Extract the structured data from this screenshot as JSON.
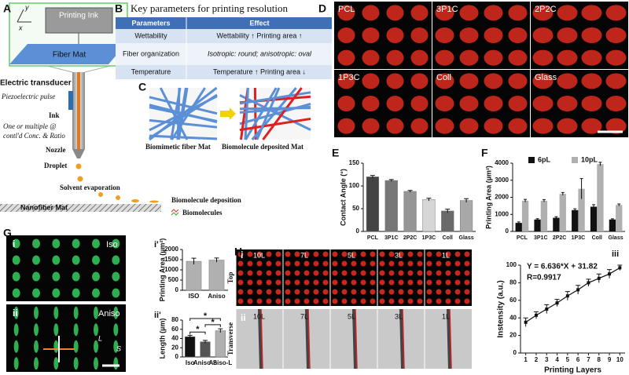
{
  "panel_labels": [
    "A",
    "B",
    "C",
    "D",
    "E",
    "F",
    "G",
    "H",
    "i'",
    "ii'",
    "iii"
  ],
  "panel_a": {
    "axis_y": "y",
    "axis_x": "x",
    "ink": "Printing Ink",
    "mat": "Fiber Mat",
    "transducer": "Electric transducer",
    "pulse": "Piezoelectric pulse",
    "ink_label": "Ink",
    "multi_1": "One or multiple @",
    "multi_2": "contl'd Conc. & Ratio",
    "nozzle": "Nozzle",
    "droplet": "Droplet",
    "evaporation": "Solvent evaporation",
    "deposition": "Biomolecule deposition",
    "biomolecules": "Biomolecules",
    "nanofiber": "Nanofiber Mat"
  },
  "panel_b": {
    "title": "Key parameters for printing resolution",
    "headers": [
      "Parameters",
      "Effect"
    ],
    "rows": [
      [
        "Wettability",
        "Wettability ↑  Printing area ↑"
      ],
      [
        "Fiber organization",
        "Isotropic: round; anisotropic: oval"
      ],
      [
        "Temperature",
        "Temperature ↑  Printing area ↓"
      ]
    ]
  },
  "panel_c": {
    "left": "Biomimetic fiber Mat",
    "right": "Biomolecule deposited Mat"
  },
  "panel_d": {
    "labels": [
      "PCL",
      "3P1C",
      "2P2C",
      "1P3C",
      "Coll",
      "Glass"
    ]
  },
  "panel_g": {
    "i": "i",
    "iso": "Iso",
    "ii": "ii",
    "aniso": "Aniso",
    "l": "L",
    "s": "S"
  },
  "panel_h": {
    "i": "i",
    "ii": "ii",
    "top": "Top",
    "transverse": "Transverse",
    "layers": [
      "10L",
      "7L",
      "5L",
      "3L",
      "1L"
    ]
  },
  "chart_data": [
    {
      "type": "bar",
      "y_label": "Contact Angle (°)",
      "categories": [
        "PCL",
        "3P1C",
        "2P2C",
        "1P3C",
        "Coll",
        "Glass"
      ],
      "values": [
        120,
        112,
        88,
        70,
        45,
        68
      ],
      "errors": [
        3,
        2,
        2,
        3,
        4,
        4
      ],
      "colors": [
        "#444444",
        "#777777",
        "#959595",
        "#d6d6d6",
        "#6a6a6a",
        "#a8a8a8"
      ],
      "ylim": [
        0,
        150
      ],
      "yticks": [
        0,
        50,
        100,
        150
      ]
    },
    {
      "type": "bar",
      "y_label": "Printing Area (µm²)",
      "categories": [
        "PCL",
        "3P1C",
        "2P2C",
        "1P3C",
        "Coll",
        "Glass"
      ],
      "series": [
        {
          "name": "6pL",
          "color": "#111111",
          "values": [
            500,
            700,
            800,
            1250,
            1450,
            700
          ],
          "errors": [
            60,
            50,
            60,
            80,
            120,
            40
          ]
        },
        {
          "name": "10pL",
          "color": "#b0b0b0",
          "values": [
            1800,
            1800,
            2200,
            2500,
            3950,
            1550
          ],
          "errors": [
            80,
            70,
            80,
            600,
            100,
            60
          ]
        }
      ],
      "ylim": [
        0,
        4000
      ],
      "yticks": [
        0,
        1000,
        2000,
        3000,
        4000
      ],
      "legend": "top"
    },
    {
      "type": "bar",
      "y_label": "Printing Area (µm²)",
      "categories": [
        "ISO",
        "Aniso"
      ],
      "values": [
        1420,
        1480
      ],
      "errors": [
        150,
        100
      ],
      "colors": [
        "#b0b0b0",
        "#b0b0b0"
      ],
      "ylim": [
        0,
        2000
      ],
      "yticks": [
        0,
        500,
        1000,
        1500,
        2000
      ]
    },
    {
      "type": "bar",
      "y_label": "Length (µm)",
      "categories": [
        "Iso",
        "Aniso-S",
        "Aniso-L"
      ],
      "values": [
        44,
        33,
        57
      ],
      "errors": [
        3,
        3,
        4
      ],
      "colors": [
        "#111111",
        "#555555",
        "#b0b0b0"
      ],
      "ylim": [
        0,
        80
      ],
      "yticks": [
        0,
        20,
        40,
        60,
        80
      ],
      "annotations": [
        "*",
        "*",
        "*"
      ]
    },
    {
      "type": "line",
      "y_label": "Instensity (a.u.)",
      "x_label": "Printing Layers",
      "x": [
        1,
        2,
        3,
        4,
        5,
        6,
        7,
        8,
        9,
        10
      ],
      "values": [
        35,
        43,
        50,
        57,
        65,
        72,
        80,
        85,
        90,
        97
      ],
      "errors": [
        5,
        4,
        5,
        4,
        5,
        5,
        4,
        5,
        5,
        3
      ],
      "color": "#111111",
      "xlim": [
        0.5,
        10.5
      ],
      "xticks": [
        1,
        2,
        3,
        4,
        5,
        6,
        7,
        8,
        9,
        10
      ],
      "ylim": [
        0,
        100
      ],
      "yticks": [
        0,
        20,
        40,
        60,
        80,
        100
      ],
      "annotations": [
        "Y = 6.636*X + 31.82",
        "R=0.9917"
      ]
    }
  ]
}
